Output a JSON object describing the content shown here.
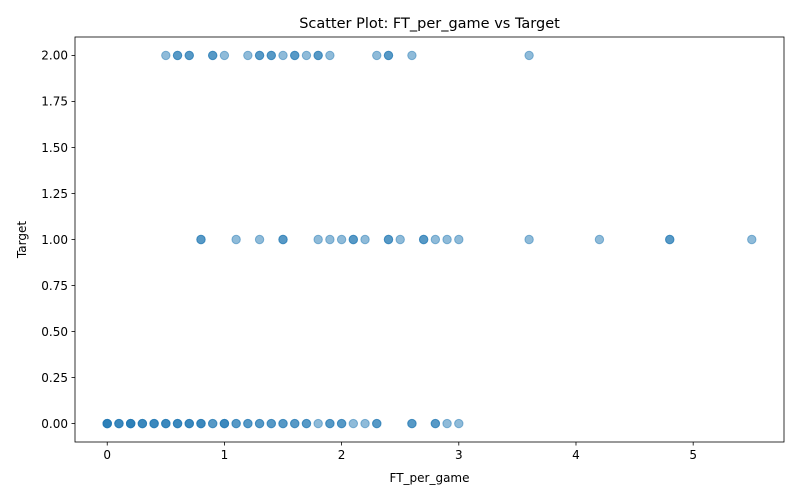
{
  "chart_data": {
    "type": "scatter",
    "title": "Scatter Plot: FT_per_game vs Target",
    "xlabel": "FT_per_game",
    "ylabel": "Target",
    "xlim": [
      -0.275,
      5.775
    ],
    "ylim": [
      -0.1,
      2.1
    ],
    "xticks": [
      0,
      1,
      2,
      3,
      4,
      5
    ],
    "xtick_labels": [
      "0",
      "1",
      "2",
      "3",
      "4",
      "5"
    ],
    "yticks": [
      0,
      0.25,
      0.5,
      0.75,
      1,
      1.25,
      1.5,
      1.75,
      2
    ],
    "ytick_labels": [
      "0.00",
      "0.25",
      "0.50",
      "0.75",
      "1.00",
      "1.25",
      "1.50",
      "1.75",
      "2.00"
    ],
    "grid": false,
    "legend": "none",
    "marker_color": "#1f77b4",
    "marker_alpha": 0.5,
    "series": [
      {
        "points": [
          [
            0,
            0
          ],
          [
            0,
            0
          ],
          [
            0,
            0
          ],
          [
            0,
            0
          ],
          [
            0.1,
            0
          ],
          [
            0.1,
            0
          ],
          [
            0.1,
            0
          ],
          [
            0.2,
            0
          ],
          [
            0.2,
            0
          ],
          [
            0.2,
            0
          ],
          [
            0.2,
            0
          ],
          [
            0.3,
            0
          ],
          [
            0.3,
            0
          ],
          [
            0.3,
            0
          ],
          [
            0.4,
            0
          ],
          [
            0.4,
            0
          ],
          [
            0.4,
            0
          ],
          [
            0.5,
            0
          ],
          [
            0.5,
            0
          ],
          [
            0.5,
            0
          ],
          [
            0.6,
            0
          ],
          [
            0.6,
            0
          ],
          [
            0.6,
            0
          ],
          [
            0.7,
            0
          ],
          [
            0.7,
            0
          ],
          [
            0.7,
            0
          ],
          [
            0.8,
            0
          ],
          [
            0.8,
            0
          ],
          [
            0.8,
            0
          ],
          [
            0.9,
            0
          ],
          [
            0.9,
            0
          ],
          [
            1.0,
            0
          ],
          [
            1.0,
            0
          ],
          [
            1.0,
            0
          ],
          [
            1.1,
            0
          ],
          [
            1.1,
            0
          ],
          [
            1.2,
            0
          ],
          [
            1.2,
            0
          ],
          [
            1.3,
            0
          ],
          [
            1.3,
            0
          ],
          [
            1.4,
            0
          ],
          [
            1.4,
            0
          ],
          [
            1.5,
            0
          ],
          [
            1.5,
            0
          ],
          [
            1.6,
            0
          ],
          [
            1.6,
            0
          ],
          [
            1.7,
            0
          ],
          [
            1.7,
            0
          ],
          [
            1.8,
            0
          ],
          [
            1.9,
            0
          ],
          [
            1.9,
            0
          ],
          [
            2.0,
            0
          ],
          [
            2.0,
            0
          ],
          [
            2.1,
            0
          ],
          [
            2.2,
            0
          ],
          [
            2.3,
            0
          ],
          [
            2.3,
            0
          ],
          [
            2.6,
            0
          ],
          [
            2.6,
            0
          ],
          [
            2.8,
            0
          ],
          [
            2.8,
            0
          ],
          [
            2.9,
            0
          ],
          [
            3.0,
            0
          ],
          [
            0.8,
            1
          ],
          [
            0.8,
            1
          ],
          [
            1.1,
            1
          ],
          [
            1.3,
            1
          ],
          [
            1.5,
            1
          ],
          [
            1.5,
            1
          ],
          [
            1.8,
            1
          ],
          [
            1.9,
            1
          ],
          [
            2.0,
            1
          ],
          [
            2.1,
            1
          ],
          [
            2.1,
            1
          ],
          [
            2.2,
            1
          ],
          [
            2.4,
            1
          ],
          [
            2.4,
            1
          ],
          [
            2.5,
            1
          ],
          [
            2.7,
            1
          ],
          [
            2.7,
            1
          ],
          [
            2.8,
            1
          ],
          [
            2.9,
            1
          ],
          [
            3.0,
            1
          ],
          [
            3.6,
            1
          ],
          [
            4.2,
            1
          ],
          [
            4.8,
            1
          ],
          [
            4.8,
            1
          ],
          [
            5.5,
            1
          ],
          [
            0.5,
            2
          ],
          [
            0.6,
            2
          ],
          [
            0.6,
            2
          ],
          [
            0.7,
            2
          ],
          [
            0.7,
            2
          ],
          [
            0.9,
            2
          ],
          [
            0.9,
            2
          ],
          [
            1.0,
            2
          ],
          [
            1.2,
            2
          ],
          [
            1.3,
            2
          ],
          [
            1.3,
            2
          ],
          [
            1.4,
            2
          ],
          [
            1.4,
            2
          ],
          [
            1.5,
            2
          ],
          [
            1.6,
            2
          ],
          [
            1.6,
            2
          ],
          [
            1.7,
            2
          ],
          [
            1.8,
            2
          ],
          [
            1.8,
            2
          ],
          [
            1.9,
            2
          ],
          [
            2.3,
            2
          ],
          [
            2.4,
            2
          ],
          [
            2.4,
            2
          ],
          [
            2.6,
            2
          ],
          [
            3.6,
            2
          ]
        ]
      }
    ]
  }
}
